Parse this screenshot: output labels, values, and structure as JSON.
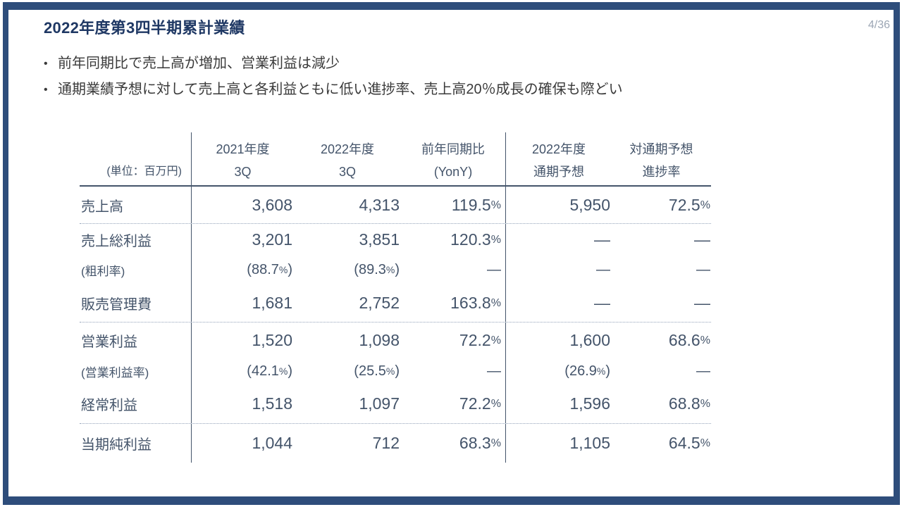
{
  "slide": {
    "title": "2022年度第3四半期累計業績",
    "page_number": "4/36",
    "bullets": [
      "前年同期比で売上高が増加、営業利益は減少",
      "通期業績予想に対して売上高と各利益ともに低い進捗率、売上高20％成長の確保も際どい"
    ]
  },
  "table": {
    "unit_label": "(単位：百万円)",
    "column_headers": [
      {
        "line1": "2021年度",
        "line2": "3Q"
      },
      {
        "line1": "2022年度",
        "line2": "3Q"
      },
      {
        "line1": "前年同期比",
        "line2": "(YonY)"
      },
      {
        "line1": "2022年度",
        "line2": "通期予想"
      },
      {
        "line1": "対通期予想",
        "line2": "進捗率"
      }
    ],
    "rows": [
      {
        "label": "売上高",
        "values": [
          "3,608",
          "4,313",
          "119.5%",
          "5,950",
          "72.5%"
        ],
        "sub": false,
        "divider_after": true
      },
      {
        "label": "売上総利益",
        "values": [
          "3,201",
          "3,851",
          "120.3%",
          "—",
          "—"
        ],
        "sub": false,
        "divider_after": false
      },
      {
        "label": "(粗利率)",
        "values": [
          "(88.7%)",
          "(89.3%)",
          "—",
          "—",
          "—"
        ],
        "sub": true,
        "divider_after": false
      },
      {
        "label": "販売管理費",
        "values": [
          "1,681",
          "2,752",
          "163.8%",
          "—",
          "—"
        ],
        "sub": false,
        "divider_after": true
      },
      {
        "label": "営業利益",
        "values": [
          "1,520",
          "1,098",
          "72.2%",
          "1,600",
          "68.6%"
        ],
        "sub": false,
        "divider_after": false
      },
      {
        "label": "(営業利益率)",
        "values": [
          "(42.1%)",
          "(25.5%)",
          "—",
          "(26.9%)",
          "—"
        ],
        "sub": true,
        "divider_after": false
      },
      {
        "label": "経常利益",
        "values": [
          "1,518",
          "1,097",
          "72.2%",
          "1,596",
          "68.8%"
        ],
        "sub": false,
        "divider_after": true
      },
      {
        "label": "当期純利益",
        "values": [
          "1,044",
          "712",
          "68.3%",
          "1,105",
          "64.5%"
        ],
        "sub": false,
        "divider_after": false
      }
    ]
  },
  "colors": {
    "frame_navy": "#2E4D7B",
    "title_navy": "#1F3864",
    "table_text": "#44546A",
    "divider_dotted": "#93A2B8",
    "page_number_gray": "#9CA6B4"
  }
}
